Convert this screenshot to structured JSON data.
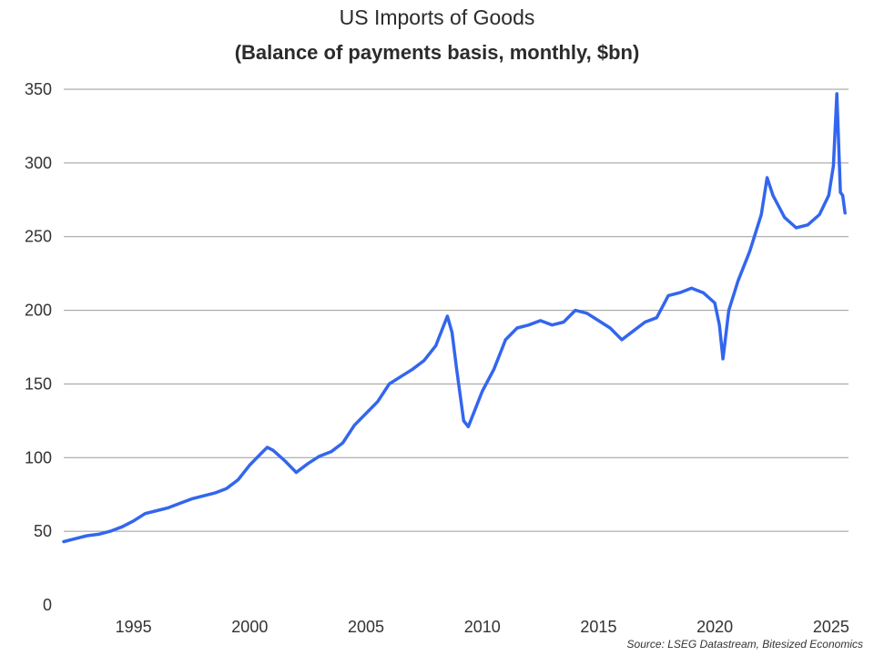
{
  "chart_data": {
    "type": "line",
    "title": "US Imports of Goods",
    "subtitle": "(Balance of payments basis, monthly, $bn)",
    "xlabel": "",
    "ylabel": "",
    "xlim": [
      1992.0,
      2025.75
    ],
    "ylim": [
      0,
      350
    ],
    "y_ticks": [
      0,
      50,
      100,
      150,
      200,
      250,
      300,
      350
    ],
    "x_ticks": [
      1995,
      2000,
      2005,
      2010,
      2015,
      2020,
      2025
    ],
    "grid": "horizontal",
    "series_color": "#3366ee",
    "series": [
      {
        "x": [
          1992.0,
          1992.5,
          1993.0,
          1993.5,
          1994.0,
          1994.5,
          1995.0,
          1995.5,
          1996.0,
          1996.5,
          1997.0,
          1997.5,
          1998.0,
          1998.5,
          1999.0,
          1999.5,
          2000.0,
          2000.5,
          2000.75,
          2001.0,
          2001.5,
          2002.0,
          2002.5,
          2003.0,
          2003.5,
          2004.0,
          2004.5,
          2005.0,
          2005.5,
          2006.0,
          2006.5,
          2007.0,
          2007.5,
          2008.0,
          2008.5,
          2008.7,
          2008.9,
          2009.2,
          2009.4,
          2010.0,
          2010.5,
          2011.0,
          2011.5,
          2012.0,
          2012.5,
          2013.0,
          2013.5,
          2014.0,
          2014.5,
          2015.0,
          2015.5,
          2016.0,
          2016.5,
          2017.0,
          2017.5,
          2018.0,
          2018.5,
          2019.0,
          2019.5,
          2020.0,
          2020.2,
          2020.35,
          2020.6,
          2021.0,
          2021.5,
          2022.0,
          2022.25,
          2022.5,
          2023.0,
          2023.5,
          2024.0,
          2024.5,
          2024.9,
          2025.1,
          2025.25,
          2025.4,
          2025.5,
          2025.6
        ],
        "values": [
          43,
          45,
          47,
          48,
          50,
          53,
          57,
          62,
          64,
          66,
          69,
          72,
          74,
          76,
          79,
          85,
          95,
          103,
          107,
          105,
          98,
          90,
          96,
          101,
          104,
          110,
          122,
          130,
          138,
          150,
          155,
          160,
          166,
          176,
          196,
          185,
          160,
          125,
          121,
          145,
          160,
          180,
          188,
          190,
          193,
          190,
          192,
          200,
          198,
          193,
          188,
          180,
          186,
          192,
          195,
          210,
          212,
          215,
          212,
          205,
          190,
          167,
          200,
          220,
          240,
          265,
          290,
          278,
          263,
          256,
          258,
          265,
          278,
          298,
          347,
          280,
          278,
          266
        ]
      }
    ],
    "source": "Source: LSEG Datastream, Bitesized Economics"
  }
}
